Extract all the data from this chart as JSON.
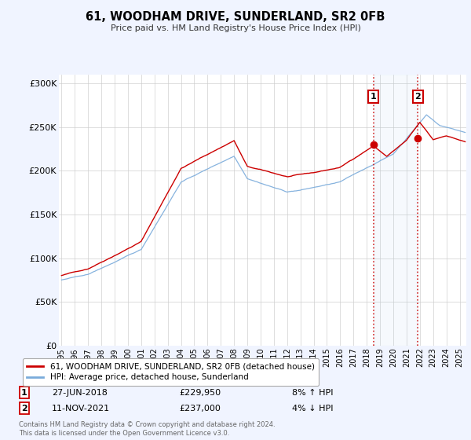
{
  "title": "61, WOODHAM DRIVE, SUNDERLAND, SR2 0FB",
  "subtitle": "Price paid vs. HM Land Registry's House Price Index (HPI)",
  "ylabel_ticks": [
    "£0",
    "£50K",
    "£100K",
    "£150K",
    "£200K",
    "£250K",
    "£300K"
  ],
  "ytick_values": [
    0,
    50000,
    100000,
    150000,
    200000,
    250000,
    300000
  ],
  "ylim": [
    0,
    310000
  ],
  "xlim_start": 1994.8,
  "xlim_end": 2025.5,
  "red_color": "#cc0000",
  "blue_color": "#7aabdb",
  "legend_label_red": "61, WOODHAM DRIVE, SUNDERLAND, SR2 0FB (detached house)",
  "legend_label_blue": "HPI: Average price, detached house, Sunderland",
  "point1_label": "1",
  "point1_date": "27-JUN-2018",
  "point1_price": "£229,950",
  "point1_hpi": "8% ↑ HPI",
  "point1_x": 2018.5,
  "point1_y": 229950,
  "point2_label": "2",
  "point2_date": "11-NOV-2021",
  "point2_price": "£237,000",
  "point2_hpi": "4% ↓ HPI",
  "point2_x": 2021.85,
  "point2_y": 237000,
  "footer": "Contains HM Land Registry data © Crown copyright and database right 2024.\nThis data is licensed under the Open Government Licence v3.0.",
  "background_color": "#f0f4ff",
  "plot_bg_color": "#ffffff",
  "grid_color": "#cccccc",
  "shade_color": "#aaccee"
}
